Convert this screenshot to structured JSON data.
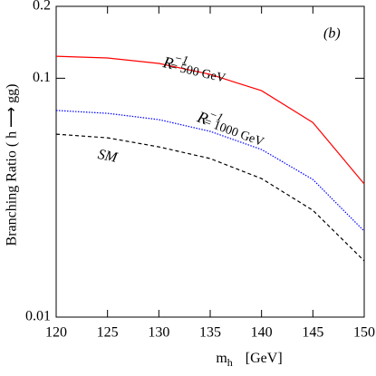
{
  "chart_data": {
    "type": "line",
    "x_label": {
      "base": "m",
      "sub": "h",
      "unit": "[GeV]"
    },
    "y_label": "Branching Ratio   ( h ⟶ gg)",
    "x": [
      120,
      125,
      130,
      135,
      140,
      145,
      150
    ],
    "series": [
      {
        "color": "#ff0000",
        "style": "solid",
        "values": [
          0.1236,
          0.1216,
          0.1154,
          0.1038,
          0.0887,
          0.0653,
          0.0361
        ]
      },
      {
        "color": "#0000ff",
        "style": "dotted",
        "values": [
          0.0733,
          0.0713,
          0.0671,
          0.0599,
          0.0503,
          0.0377,
          0.0229
        ]
      },
      {
        "color": "#000000",
        "style": "dashed",
        "values": [
          0.0583,
          0.0563,
          0.0516,
          0.0461,
          0.038,
          0.028,
          0.0172
        ]
      }
    ],
    "xlim": [
      120,
      150
    ],
    "xticks": [
      120,
      125,
      130,
      135,
      140,
      145,
      150
    ],
    "ylim": [
      0.01,
      0.2
    ],
    "yticks": [
      0.01,
      0.1,
      0.2
    ],
    "log_y": true,
    "annotations": [
      {
        "text": "(b)"
      },
      {
        "base": "R",
        "sup": "−1",
        "text": "= 500 GeV"
      },
      {
        "base": "R",
        "sup": "−1",
        "text": "= 1000 GeV"
      },
      {
        "text": "SM"
      }
    ]
  }
}
